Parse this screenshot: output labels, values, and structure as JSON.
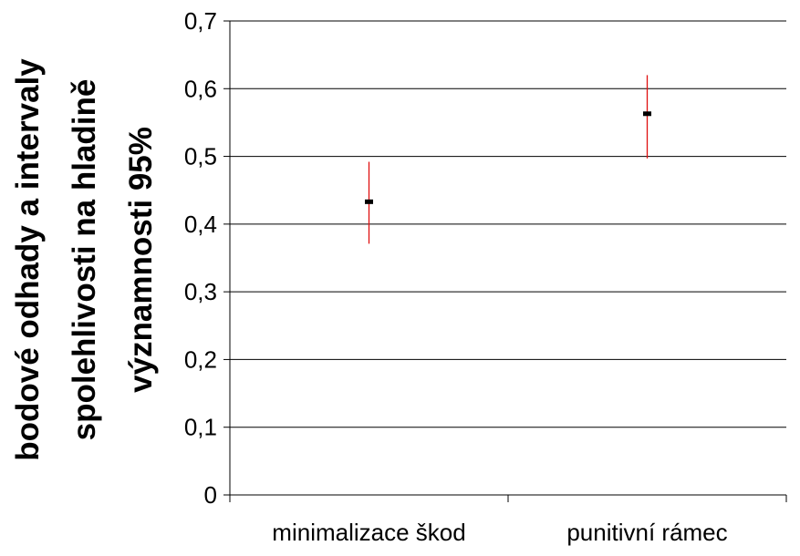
{
  "chart_data": {
    "type": "error_bar",
    "categories": [
      "minimalizace škod",
      "punitivní rámec"
    ],
    "series": [
      {
        "estimates": [
          0.433,
          0.563
        ],
        "lower": [
          0.371,
          0.497
        ],
        "upper": [
          0.492,
          0.62
        ]
      }
    ],
    "ylabel_lines": [
      "bodové odhady a intervaly",
      "spolehlivosti na hladině",
      "významnosti 95%"
    ],
    "ylim": [
      0,
      0.7
    ],
    "yticks": [
      0,
      0.1,
      0.2,
      0.3,
      0.4,
      0.5,
      0.6,
      0.7
    ],
    "ytick_labels": [
      "0",
      "0,1",
      "0,2",
      "0,3",
      "0,4",
      "0,5",
      "0,6",
      "0,7"
    ],
    "grid": true,
    "legend": "none",
    "colors": {
      "interval": "#e01010",
      "estimate": "#000000",
      "grid": "#000000",
      "text": "#000000"
    }
  }
}
